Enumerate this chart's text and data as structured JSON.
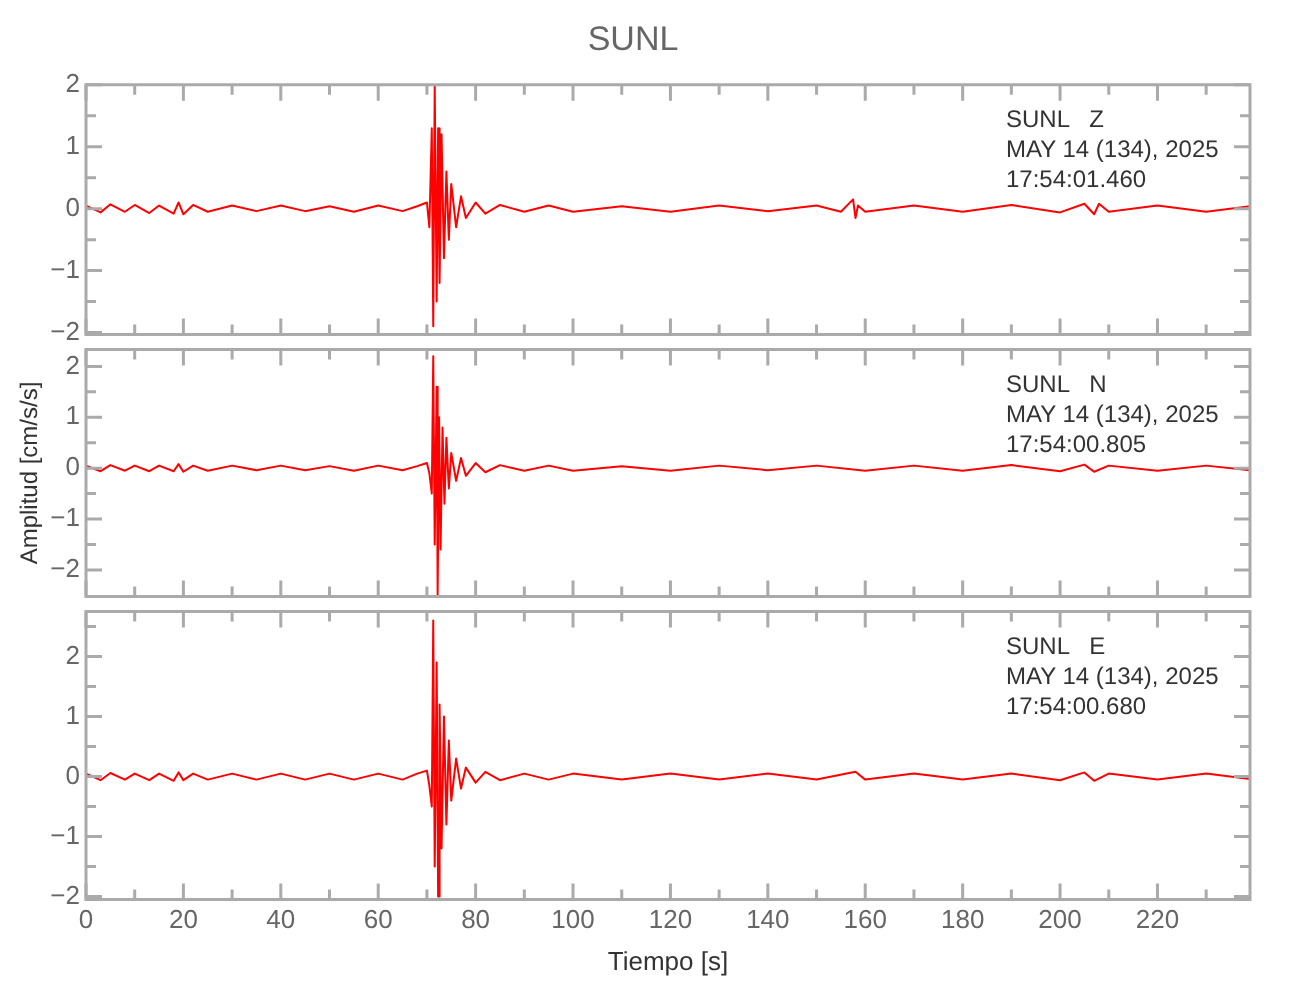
{
  "chart_data": [
    {
      "type": "line",
      "title": "SUNL",
      "annotations": [
        "SUNL   Z",
        "MAY 14 (134), 2025",
        "17:54:01.460"
      ],
      "xlim": [
        0,
        239
      ],
      "xticks": [
        0,
        {
          "value": 10,
          "label": null
        },
        20,
        {
          "value": 30,
          "label": null
        },
        40,
        {
          "value": 50,
          "label": null
        },
        60,
        {
          "value": 70,
          "label": null
        },
        80,
        {
          "value": 90,
          "label": null
        },
        100,
        {
          "value": 110,
          "label": null
        },
        120,
        {
          "value": 130,
          "label": null
        },
        140,
        {
          "value": 150,
          "label": null
        },
        160,
        {
          "value": 170,
          "label": null
        },
        180,
        {
          "value": 190,
          "label": null
        },
        200,
        {
          "value": 210,
          "label": null
        },
        220,
        {
          "value": 230,
          "label": null
        }
      ],
      "ylim": [
        -2.03,
        2.0
      ],
      "yticks": [
        -2,
        {
          "value": -1.5,
          "label": null
        },
        -1,
        {
          "value": -0.5,
          "label": null
        },
        0,
        {
          "value": 0.5,
          "label": null
        },
        1,
        {
          "value": 1.5,
          "label": null
        },
        2
      ],
      "tick_labels": "y",
      "marker": "none",
      "line_style": "solid",
      "series": [
        {
          "color": "#ff0000",
          "x": [
            0,
            3,
            5,
            8,
            10,
            13,
            15,
            18,
            19,
            20,
            22,
            25,
            30,
            35,
            40,
            45,
            50,
            55,
            60,
            65,
            68,
            70,
            70.5,
            71,
            71.3,
            71.6,
            72,
            72.3,
            72.6,
            73,
            73.5,
            74,
            74.5,
            75,
            76,
            77,
            78,
            80,
            82,
            85,
            90,
            95,
            100,
            110,
            120,
            130,
            140,
            150,
            155,
            157.5,
            158,
            158.5,
            160,
            170,
            180,
            190,
            200,
            205,
            207,
            208,
            210,
            220,
            230,
            239
          ],
          "values": [
            0.05,
            -0.06,
            0.07,
            -0.05,
            0.06,
            -0.07,
            0.05,
            -0.08,
            0.1,
            -0.09,
            0.06,
            -0.05,
            0.05,
            -0.04,
            0.05,
            -0.04,
            0.04,
            -0.05,
            0.05,
            -0.04,
            0.04,
            0.1,
            -0.3,
            1.3,
            -1.9,
            2.0,
            -1.5,
            1.3,
            -1.2,
            1.2,
            -0.8,
            0.6,
            -0.5,
            0.4,
            -0.3,
            0.2,
            -0.15,
            0.1,
            -0.08,
            0.06,
            -0.05,
            0.05,
            -0.05,
            0.04,
            -0.05,
            0.05,
            -0.04,
            0.05,
            -0.05,
            0.15,
            -0.15,
            0.05,
            -0.05,
            0.05,
            -0.05,
            0.06,
            -0.06,
            0.08,
            -0.09,
            0.08,
            -0.05,
            0.05,
            -0.05,
            0.04
          ]
        }
      ]
    },
    {
      "type": "line",
      "ylabel": "Amplitud [cm/s/s]",
      "annotations": [
        "SUNL   N",
        "MAY 14 (134), 2025",
        "17:54:00.805"
      ],
      "xlim": [
        0,
        239
      ],
      "xticks": [
        0,
        {
          "value": 10,
          "label": null
        },
        20,
        {
          "value": 30,
          "label": null
        },
        40,
        {
          "value": 50,
          "label": null
        },
        60,
        {
          "value": 70,
          "label": null
        },
        80,
        {
          "value": 90,
          "label": null
        },
        100,
        {
          "value": 110,
          "label": null
        },
        120,
        {
          "value": 130,
          "label": null
        },
        140,
        {
          "value": 150,
          "label": null
        },
        160,
        {
          "value": 170,
          "label": null
        },
        180,
        {
          "value": 190,
          "label": null
        },
        200,
        {
          "value": 210,
          "label": null
        },
        220,
        {
          "value": 230,
          "label": null
        }
      ],
      "ylim": [
        -2.52,
        2.33
      ],
      "yticks": [
        -2,
        {
          "value": -1.5,
          "label": null
        },
        -1,
        {
          "value": -0.5,
          "label": null
        },
        0,
        {
          "value": 0.5,
          "label": null
        },
        1,
        {
          "value": 1.5,
          "label": null
        },
        2
      ],
      "tick_labels": "y",
      "marker": "none",
      "line_style": "solid",
      "series": [
        {
          "color": "#ff0000",
          "x": [
            0,
            3,
            5,
            8,
            10,
            13,
            15,
            18,
            19,
            20,
            22,
            25,
            30,
            35,
            40,
            45,
            50,
            55,
            60,
            65,
            68,
            70,
            70.5,
            71,
            71.3,
            71.6,
            72,
            72.2,
            72.5,
            72.8,
            73.2,
            73.6,
            74,
            74.5,
            75,
            76,
            77,
            78,
            80,
            82,
            85,
            90,
            95,
            100,
            110,
            120,
            130,
            140,
            150,
            160,
            170,
            180,
            190,
            200,
            205,
            207,
            210,
            220,
            230,
            239
          ],
          "values": [
            0.05,
            -0.06,
            0.06,
            -0.05,
            0.05,
            -0.06,
            0.05,
            -0.06,
            0.08,
            -0.07,
            0.05,
            -0.05,
            0.05,
            -0.04,
            0.05,
            -0.04,
            0.04,
            -0.05,
            0.05,
            -0.04,
            0.04,
            0.1,
            -0.1,
            -0.5,
            2.2,
            -1.5,
            1.6,
            -2.5,
            1.0,
            -1.6,
            0.8,
            -0.7,
            0.6,
            -0.4,
            0.3,
            -0.25,
            0.2,
            -0.15,
            0.1,
            -0.08,
            0.06,
            -0.05,
            0.05,
            -0.05,
            0.04,
            -0.05,
            0.05,
            -0.04,
            0.05,
            -0.05,
            0.05,
            -0.05,
            0.06,
            -0.06,
            0.07,
            -0.07,
            0.05,
            -0.05,
            0.05,
            -0.04
          ]
        }
      ]
    },
    {
      "type": "line",
      "xlabel": "Tiempo [s]",
      "annotations": [
        "SUNL   E",
        "MAY 14 (134), 2025",
        "17:54:00.680"
      ],
      "xlim": [
        0,
        239
      ],
      "xticks": [
        0,
        {
          "value": 10,
          "label": null
        },
        20,
        {
          "value": 30,
          "label": null
        },
        40,
        {
          "value": 50,
          "label": null
        },
        60,
        {
          "value": 70,
          "label": null
        },
        80,
        {
          "value": 90,
          "label": null
        },
        100,
        {
          "value": 110,
          "label": null
        },
        120,
        {
          "value": 130,
          "label": null
        },
        140,
        {
          "value": 150,
          "label": null
        },
        160,
        {
          "value": 170,
          "label": null
        },
        180,
        {
          "value": 190,
          "label": null
        },
        200,
        {
          "value": 210,
          "label": null
        },
        220,
        {
          "value": 230,
          "label": null
        }
      ],
      "ylim": [
        -2.05,
        2.75
      ],
      "yticks": [
        -2,
        {
          "value": -1.5,
          "label": null
        },
        -1,
        {
          "value": -0.5,
          "label": null
        },
        0,
        {
          "value": 0.5,
          "label": null
        },
        1,
        {
          "value": 1.5,
          "label": null
        },
        2,
        {
          "value": 2.5,
          "label": null
        }
      ],
      "marker": "none",
      "line_style": "solid",
      "series": [
        {
          "color": "#ff0000",
          "x": [
            0,
            3,
            5,
            8,
            10,
            13,
            15,
            18,
            19,
            20,
            22,
            25,
            30,
            35,
            40,
            45,
            50,
            55,
            60,
            65,
            68,
            70,
            70.5,
            71,
            71.3,
            71.6,
            72,
            72.3,
            72.6,
            73,
            73.5,
            74,
            74.5,
            75,
            76,
            77,
            78,
            80,
            82,
            85,
            90,
            95,
            100,
            110,
            120,
            130,
            140,
            150,
            158,
            160,
            170,
            180,
            190,
            200,
            205,
            207,
            210,
            220,
            230,
            239
          ],
          "values": [
            0.05,
            -0.06,
            0.06,
            -0.05,
            0.05,
            -0.06,
            0.05,
            -0.07,
            0.07,
            -0.06,
            0.05,
            -0.05,
            0.05,
            -0.05,
            0.05,
            -0.05,
            0.05,
            -0.05,
            0.05,
            -0.05,
            0.05,
            0.1,
            -0.15,
            -0.5,
            2.6,
            -1.5,
            1.9,
            -2.0,
            1.2,
            -1.2,
            1.0,
            -0.8,
            0.6,
            -0.4,
            0.3,
            -0.2,
            0.15,
            -0.1,
            0.08,
            -0.06,
            0.05,
            -0.05,
            0.05,
            -0.05,
            0.05,
            -0.05,
            0.05,
            -0.05,
            0.08,
            -0.05,
            0.05,
            -0.05,
            0.05,
            -0.06,
            0.07,
            -0.07,
            0.05,
            -0.05,
            0.05,
            -0.04
          ]
        }
      ]
    }
  ]
}
